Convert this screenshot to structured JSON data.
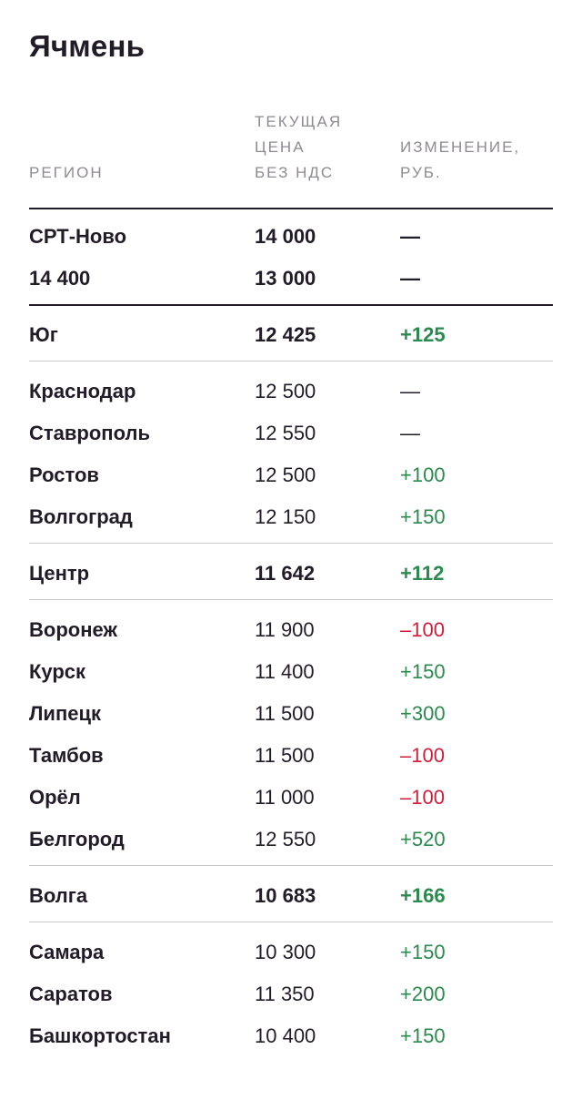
{
  "title": "Ячмень",
  "headers": {
    "region": "РЕГИОН",
    "price": "ТЕКУЩАЯ\nЦЕНА\nБЕЗ НДС",
    "change": "ИЗМЕНЕНИЕ,\nРУБ."
  },
  "colors": {
    "positive": "#2b8a4e",
    "negative": "#d21d3a",
    "text": "#221c29",
    "muted": "#8e8a93"
  },
  "rows": [
    {
      "region": "СРТ-Ново",
      "price": "14 000",
      "change": "—",
      "bold": true,
      "sign": "neu"
    },
    {
      "region": "14 400",
      "price": "13 000",
      "change": "—",
      "bold": true,
      "sign": "neu"
    },
    {
      "region": "Юг",
      "price": "12 425",
      "change": "+125",
      "bold": true,
      "sign": "pos"
    },
    {
      "region": "Краснодар",
      "price": "12 500",
      "change": "—",
      "bold": false,
      "sign": "neu"
    },
    {
      "region": "Ставрополь",
      "price": "12 550",
      "change": "—",
      "bold": false,
      "sign": "neu"
    },
    {
      "region": "Ростов",
      "price": "12 500",
      "change": "+100",
      "bold": false,
      "sign": "pos"
    },
    {
      "region": "Волгоград",
      "price": "12 150",
      "change": "+150",
      "bold": false,
      "sign": "pos"
    },
    {
      "region": "Центр",
      "price": "11 642",
      "change": "+112",
      "bold": true,
      "sign": "pos"
    },
    {
      "region": "Воронеж",
      "price": "11 900",
      "change": "–100",
      "bold": false,
      "sign": "neg"
    },
    {
      "region": "Курск",
      "price": "11 400",
      "change": "+150",
      "bold": false,
      "sign": "pos"
    },
    {
      "region": "Липецк",
      "price": "11 500",
      "change": "+300",
      "bold": false,
      "sign": "pos"
    },
    {
      "region": "Тамбов",
      "price": "11 500",
      "change": "–100",
      "bold": false,
      "sign": "neg"
    },
    {
      "region": "Орёл",
      "price": "11 000",
      "change": "–100",
      "bold": false,
      "sign": "neg"
    },
    {
      "region": "Белгород",
      "price": "12 550",
      "change": "+520",
      "bold": false,
      "sign": "pos"
    },
    {
      "region": "Волга",
      "price": "10 683",
      "change": "+166",
      "bold": true,
      "sign": "pos"
    },
    {
      "region": "Самара",
      "price": "10 300",
      "change": "+150",
      "bold": false,
      "sign": "pos"
    },
    {
      "region": "Саратов",
      "price": "11 350",
      "change": "+200",
      "bold": false,
      "sign": "pos"
    },
    {
      "region": "Башкортостан",
      "price": "10 400",
      "change": "+150",
      "bold": false,
      "sign": "pos"
    }
  ]
}
